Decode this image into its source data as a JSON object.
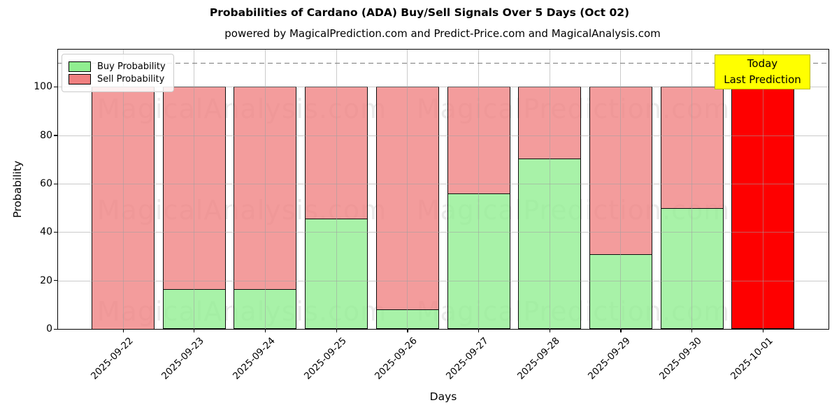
{
  "title": "Probabilities of Cardano (ADA) Buy/Sell Signals Over 5 Days (Oct 02)",
  "subtitle": "powered by MagicalPrediction.com and Predict-Price.com and MagicalAnalysis.com",
  "legend": {
    "buy_label": "Buy Probability",
    "sell_label": "Sell Probability"
  },
  "annotation_box": {
    "line1": "Today",
    "line2": "Last Prediction",
    "bg_color": "#ffff00",
    "border_color": "#b9b900"
  },
  "watermarks": {
    "left_text": "MagicalAnalysis.com",
    "right_text": "MagicalPrediction.com"
  },
  "colors": {
    "buy": "rgba(144,238,144,0.78)",
    "sell": "rgba(240,128,128,0.78)",
    "today_bar": "#fe0000",
    "bar_edge": "#0d0d0d",
    "grid": "#a0a0a0",
    "dashed_line": "#7a7a7a",
    "axes_edge": "#000000"
  },
  "chart_data": {
    "type": "bar",
    "stacked": true,
    "title": "Probabilities of Cardano (ADA) Buy/Sell Signals Over 5 Days (Oct 02)",
    "xlabel": "Days",
    "ylabel": "Probability",
    "categories": [
      "2025-09-22",
      "2025-09-23",
      "2025-09-24",
      "2025-09-25",
      "2025-09-26",
      "2025-09-27",
      "2025-09-28",
      "2025-09-29",
      "2025-09-30",
      "2025-10-01"
    ],
    "series": [
      {
        "name": "Buy Probability",
        "color": "#90ee90",
        "values": [
          0,
          16.5,
          16.5,
          45.5,
          8,
          56,
          70.5,
          31,
          50,
          0
        ]
      },
      {
        "name": "Sell Probability",
        "color": "#f08080",
        "values": [
          100,
          83.5,
          83.5,
          54.5,
          92,
          44,
          29.5,
          69,
          50,
          100
        ]
      }
    ],
    "today_bar": {
      "index": 9,
      "value": 100,
      "color": "#fe0000",
      "label": "Today Last Prediction"
    },
    "yticks": [
      0,
      20,
      40,
      60,
      80,
      100
    ],
    "ylim": [
      0,
      115.4
    ],
    "dashed_line_y": 110,
    "grid": true,
    "legend_position": "upper left"
  }
}
